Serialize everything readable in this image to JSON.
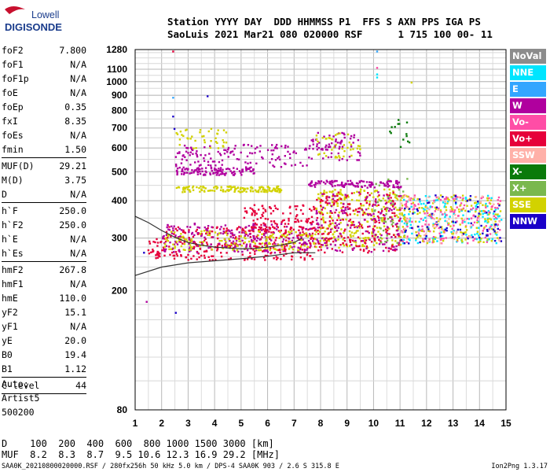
{
  "logo": {
    "line1": "Lowell",
    "line2": "DIGISONDE"
  },
  "header": {
    "line1": "Station YYYY DAY  DDD HHMMSS P1  FFS S AXN PPS IGA PS",
    "line2": "SaoLuis 2021 Mar21 080 020000 RSF      1 715 100 00- 11"
  },
  "params": {
    "group1": [
      {
        "name": "foF2",
        "value": "7.800"
      },
      {
        "name": "foF1",
        "value": "N/A"
      },
      {
        "name": "foF1p",
        "value": "N/A"
      },
      {
        "name": "foE",
        "value": "N/A"
      },
      {
        "name": "foEp",
        "value": "0.35"
      },
      {
        "name": "fxI",
        "value": "8.35"
      },
      {
        "name": "foEs",
        "value": "N/A"
      },
      {
        "name": "fmin",
        "value": "1.50"
      }
    ],
    "group2": [
      {
        "name": "MUF(D)",
        "value": "29.21"
      },
      {
        "name": "M(D)",
        "value": "3.75"
      },
      {
        "name": "D",
        "value": "N/A"
      }
    ],
    "group3": [
      {
        "name": "h`F",
        "value": "250.0"
      },
      {
        "name": "h`F2",
        "value": "250.0"
      },
      {
        "name": "h`E",
        "value": "N/A"
      },
      {
        "name": "h`Es",
        "value": "N/A"
      }
    ],
    "group4": [
      {
        "name": "hmF2",
        "value": "267.8"
      },
      {
        "name": "hmF1",
        "value": "N/A"
      },
      {
        "name": "hmE",
        "value": "110.0"
      },
      {
        "name": "yF2",
        "value": "15.1"
      },
      {
        "name": "yF1",
        "value": "N/A"
      },
      {
        "name": "yE",
        "value": "20.0"
      },
      {
        "name": "B0",
        "value": "19.4"
      },
      {
        "name": "B1",
        "value": "1.12"
      }
    ],
    "group5": [
      {
        "name": "C-level",
        "value": "44"
      }
    ]
  },
  "autoscaling": {
    "line1": "Auto:",
    "line2": "Artist5",
    "line3": "500200"
  },
  "legend": [
    {
      "label": "NoVal",
      "color": "#8c8c8c"
    },
    {
      "label": "NNE",
      "color": "#00e5ff"
    },
    {
      "label": "E",
      "color": "#33a6ff"
    },
    {
      "label": "W",
      "color": "#b0009e"
    },
    {
      "label": "Vo-",
      "color": "#ff4da6"
    },
    {
      "label": "Vo+",
      "color": "#e6003a"
    },
    {
      "label": "SSW",
      "color": "#ffb0a8"
    },
    {
      "label": "X-",
      "color": "#0a7a0a"
    },
    {
      "label": "X+",
      "color": "#7ab84d"
    },
    {
      "label": "SSE",
      "color": "#d2d200"
    },
    {
      "label": "NNW",
      "color": "#1a00c8"
    }
  ],
  "footer": {
    "line1": "D    100  200  400  600  800 1000 1500 3000 [km]",
    "line2": "MUF  8.2  8.3  8.7  9.5 10.6 12.3 16.9 29.2 [MHz]",
    "source": "SAA0K_20210800020000.RSF / 280fx256h 50 kHz 5.0 km / DPS-4 SAA0K 903 / 2.6 S 315.8 E",
    "version": "Ion2Png 1.3.17"
  },
  "chart_data": {
    "type": "scatter",
    "title": "",
    "xlabel": "",
    "ylabel": "",
    "x_scale": "linear",
    "y_scale": "log",
    "xlim": [
      1,
      15
    ],
    "ylim": [
      80,
      1280
    ],
    "x_ticks": [
      1,
      2,
      3,
      4,
      5,
      6,
      7,
      8,
      9,
      10,
      11,
      12,
      13,
      14,
      15
    ],
    "y_ticks": [
      80,
      200,
      300,
      400,
      500,
      600,
      700,
      800,
      900,
      1000,
      1100,
      1280
    ],
    "grid": true,
    "legend_placement": "right",
    "traces": [
      {
        "name": "Profile",
        "color": "#333333",
        "x": [
          1.0,
          2.0,
          3.0,
          4.0,
          5.0,
          6.0,
          7.0,
          7.8
        ],
        "y": [
          225,
          240,
          248,
          252,
          256,
          261,
          268,
          268
        ]
      },
      {
        "name": "Trace (h'F)",
        "color": "#333333",
        "x": [
          1.0,
          1.5,
          2.0,
          2.5,
          3.0,
          3.5,
          4.0,
          4.5,
          5.0,
          5.5,
          6.0,
          6.5,
          7.0,
          7.3
        ],
        "y": [
          355,
          338,
          318,
          302,
          290,
          284,
          280,
          278,
          276,
          277,
          280,
          284,
          290,
          300
        ]
      }
    ],
    "echo_clusters": [
      {
        "x": [
          1.4,
          2.0
        ],
        "y": [
          255,
          300
        ],
        "mode": "Vo+",
        "density": 28
      },
      {
        "x": [
          2.0,
          7.8
        ],
        "y": [
          255,
          330
        ],
        "mode": "Vo+",
        "density": 320
      },
      {
        "x": [
          2.0,
          7.8
        ],
        "y": [
          270,
          340
        ],
        "mode": "W",
        "density": 220
      },
      {
        "x": [
          2.0,
          7.8
        ],
        "y": [
          275,
          320
        ],
        "mode": "SSE",
        "density": 160
      },
      {
        "x": [
          5.0,
          7.8
        ],
        "y": [
          320,
          390
        ],
        "mode": "Vo+",
        "density": 120
      },
      {
        "x": [
          2.5,
          5.5
        ],
        "y": [
          490,
          520
        ],
        "mode": "W",
        "density": 110
      },
      {
        "x": [
          2.5,
          7.5
        ],
        "y": [
          520,
          620
        ],
        "mode": "W",
        "density": 130
      },
      {
        "x": [
          2.5,
          4.5
        ],
        "y": [
          600,
          700
        ],
        "mode": "SSE",
        "density": 40
      },
      {
        "x": [
          2.5,
          6.5
        ],
        "y": [
          430,
          450
        ],
        "mode": "SSE",
        "density": 140
      },
      {
        "x": [
          7.5,
          11.0
        ],
        "y": [
          445,
          470
        ],
        "mode": "W",
        "density": 120
      },
      {
        "x": [
          7.5,
          9.5
        ],
        "y": [
          550,
          680
        ],
        "mode": "W",
        "density": 70
      },
      {
        "x": [
          7.5,
          9.5
        ],
        "y": [
          560,
          680
        ],
        "mode": "SSE",
        "density": 40
      },
      {
        "x": [
          7.8,
          11.0
        ],
        "y": [
          280,
          440
        ],
        "mode": "SSE",
        "density": 260
      },
      {
        "x": [
          7.8,
          11.0
        ],
        "y": [
          270,
          430
        ],
        "mode": "Vo+",
        "density": 220
      },
      {
        "x": [
          7.8,
          11.0
        ],
        "y": [
          270,
          430
        ],
        "mode": "W",
        "density": 140
      },
      {
        "x": [
          10.0,
          11.3
        ],
        "y": [
          290,
          480
        ],
        "mode": "X+",
        "density": 40
      },
      {
        "x": [
          10.5,
          11.5
        ],
        "y": [
          600,
          760
        ],
        "mode": "X-",
        "density": 14
      },
      {
        "x": [
          11.0,
          14.8
        ],
        "y": [
          290,
          420
        ],
        "mode": "NNE",
        "density": 160
      },
      {
        "x": [
          11.0,
          14.8
        ],
        "y": [
          290,
          420
        ],
        "mode": "Vo-",
        "density": 160
      },
      {
        "x": [
          11.0,
          14.8
        ],
        "y": [
          290,
          420
        ],
        "mode": "SSE",
        "density": 150
      },
      {
        "x": [
          11.0,
          14.8
        ],
        "y": [
          290,
          420
        ],
        "mode": "NNW",
        "density": 70
      },
      {
        "x": [
          11.0,
          14.8
        ],
        "y": [
          290,
          420
        ],
        "mode": "SSW",
        "density": 60
      }
    ],
    "isolated_echoes": [
      {
        "x": 2.4,
        "y": 1270,
        "mode": "Vo+"
      },
      {
        "x": 2.4,
        "y": 890,
        "mode": "E"
      },
      {
        "x": 2.4,
        "y": 770,
        "mode": "NNW"
      },
      {
        "x": 2.45,
        "y": 700,
        "mode": "NNW"
      },
      {
        "x": 3.7,
        "y": 900,
        "mode": "NNW"
      },
      {
        "x": 10.1,
        "y": 1040,
        "mode": "NNE"
      },
      {
        "x": 10.1,
        "y": 1065,
        "mode": "NNE"
      },
      {
        "x": 10.1,
        "y": 1120,
        "mode": "Vo-"
      },
      {
        "x": 10.1,
        "y": 1270,
        "mode": "E"
      },
      {
        "x": 11.4,
        "y": 1000,
        "mode": "SSE"
      },
      {
        "x": 2.5,
        "y": 170,
        "mode": "NNW"
      },
      {
        "x": 1.4,
        "y": 185,
        "mode": "W"
      },
      {
        "x": 1.3,
        "y": 270,
        "mode": "NNW"
      }
    ]
  }
}
